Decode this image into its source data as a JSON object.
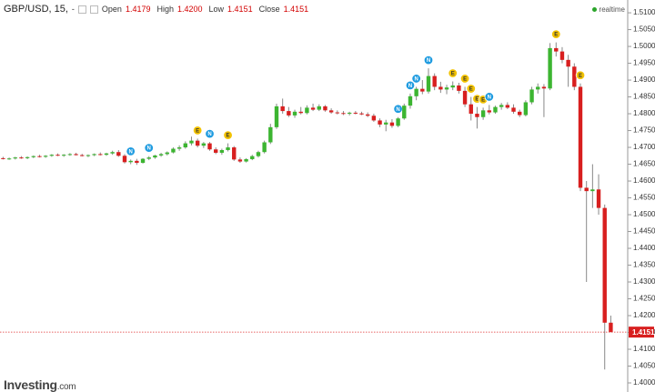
{
  "header": {
    "symbol": "GBP/USD, 15,",
    "dash": "-",
    "open": {
      "label": "Open",
      "value": "1.4179"
    },
    "high": {
      "label": "High",
      "value": "1.4200"
    },
    "low": {
      "label": "Low",
      "value": "1.4151"
    },
    "close": {
      "label": "Close",
      "value": "1.4151"
    },
    "realtime": "realtime"
  },
  "watermark": "Investing",
  "watermark_suffix": ".com",
  "chart_data": {
    "type": "candlestick",
    "up_color": "#3cb531",
    "down_color": "#d81f1f",
    "ylim": [
      1.3973,
      1.5138
    ],
    "yticks": [
      {
        "value": 1.51,
        "label": "1.5100"
      },
      {
        "value": 1.505,
        "label": "1.5050"
      },
      {
        "value": 1.5,
        "label": "1.5000"
      },
      {
        "value": 1.495,
        "label": "1.4950"
      },
      {
        "value": 1.49,
        "label": "1.4900"
      },
      {
        "value": 1.485,
        "label": "1.4850"
      },
      {
        "value": 1.48,
        "label": "1.4800"
      },
      {
        "value": 1.475,
        "label": "1.4750"
      },
      {
        "value": 1.47,
        "label": "1.4700"
      },
      {
        "value": 1.465,
        "label": "1.4650"
      },
      {
        "value": 1.46,
        "label": "1.4600"
      },
      {
        "value": 1.455,
        "label": "1.4550"
      },
      {
        "value": 1.45,
        "label": "1.4500"
      },
      {
        "value": 1.445,
        "label": "1.4450"
      },
      {
        "value": 1.44,
        "label": "1.4400"
      },
      {
        "value": 1.435,
        "label": "1.4350"
      },
      {
        "value": 1.43,
        "label": "1.4300"
      },
      {
        "value": 1.425,
        "label": "1.4250"
      },
      {
        "value": 1.42,
        "label": "1.4200"
      },
      {
        "value": 1.415,
        "label": "1.4150"
      },
      {
        "value": 1.41,
        "label": "1.4100"
      },
      {
        "value": 1.405,
        "label": "1.4050"
      },
      {
        "value": 1.4,
        "label": "1.4000"
      }
    ],
    "last_price": {
      "value": 1.4151,
      "label": "1.4151"
    },
    "candles": [
      [
        1.4668,
        1.4672,
        1.4664,
        1.4666
      ],
      [
        1.4666,
        1.467,
        1.4663,
        1.4667
      ],
      [
        1.4667,
        1.4672,
        1.4664,
        1.467
      ],
      [
        1.467,
        1.4674,
        1.4666,
        1.4668
      ],
      [
        1.4668,
        1.4673,
        1.4665,
        1.4671
      ],
      [
        1.4671,
        1.4676,
        1.4668,
        1.4674
      ],
      [
        1.4674,
        1.4678,
        1.467,
        1.4672
      ],
      [
        1.4672,
        1.4677,
        1.4669,
        1.4675
      ],
      [
        1.4675,
        1.468,
        1.4672,
        1.4678
      ],
      [
        1.4678,
        1.4682,
        1.4674,
        1.4676
      ],
      [
        1.4676,
        1.468,
        1.4672,
        1.4678
      ],
      [
        1.4678,
        1.4683,
        1.4675,
        1.468
      ],
      [
        1.468,
        1.4684,
        1.4676,
        1.4677
      ],
      [
        1.4677,
        1.4681,
        1.4673,
        1.4675
      ],
      [
        1.4675,
        1.4679,
        1.4671,
        1.4677
      ],
      [
        1.4677,
        1.4682,
        1.4674,
        1.468
      ],
      [
        1.468,
        1.4685,
        1.4676,
        1.4678
      ],
      [
        1.4678,
        1.4684,
        1.4675,
        1.4682
      ],
      [
        1.4682,
        1.469,
        1.4678,
        1.4686
      ],
      [
        1.4686,
        1.4692,
        1.4672,
        1.4675
      ],
      [
        1.4675,
        1.468,
        1.4652,
        1.4656
      ],
      [
        1.4656,
        1.4664,
        1.465,
        1.466
      ],
      [
        1.466,
        1.4666,
        1.4648,
        1.4654
      ],
      [
        1.4654,
        1.4668,
        1.4652,
        1.4666
      ],
      [
        1.4666,
        1.4674,
        1.4662,
        1.467
      ],
      [
        1.467,
        1.4678,
        1.4666,
        1.4676
      ],
      [
        1.4676,
        1.4684,
        1.4672,
        1.468
      ],
      [
        1.468,
        1.4688,
        1.4676,
        1.4685
      ],
      [
        1.4685,
        1.47,
        1.4682,
        1.4696
      ],
      [
        1.4696,
        1.4706,
        1.469,
        1.47
      ],
      [
        1.47,
        1.4718,
        1.4696,
        1.4712
      ],
      [
        1.4712,
        1.4732,
        1.4706,
        1.472
      ],
      [
        1.472,
        1.4726,
        1.47,
        1.4705
      ],
      [
        1.4705,
        1.4716,
        1.4698,
        1.4712
      ],
      [
        1.4712,
        1.4716,
        1.469,
        1.4694
      ],
      [
        1.4694,
        1.47,
        1.468,
        1.4684
      ],
      [
        1.4684,
        1.4696,
        1.4678,
        1.4692
      ],
      [
        1.4692,
        1.4712,
        1.4688,
        1.47
      ],
      [
        1.47,
        1.4704,
        1.466,
        1.4664
      ],
      [
        1.4664,
        1.467,
        1.4654,
        1.4658
      ],
      [
        1.4658,
        1.4668,
        1.4655,
        1.4665
      ],
      [
        1.4665,
        1.4678,
        1.4662,
        1.4674
      ],
      [
        1.4674,
        1.469,
        1.467,
        1.4686
      ],
      [
        1.4686,
        1.472,
        1.4682,
        1.4715
      ],
      [
        1.4715,
        1.477,
        1.471,
        1.476
      ],
      [
        1.476,
        1.483,
        1.4755,
        1.4822
      ],
      [
        1.4822,
        1.4845,
        1.48,
        1.4808
      ],
      [
        1.4808,
        1.482,
        1.479,
        1.4795
      ],
      [
        1.4795,
        1.4812,
        1.4788,
        1.4806
      ],
      [
        1.4806,
        1.482,
        1.4798,
        1.4802
      ],
      [
        1.4802,
        1.4825,
        1.4798,
        1.4818
      ],
      [
        1.4818,
        1.483,
        1.4808,
        1.4812
      ],
      [
        1.4812,
        1.4828,
        1.4808,
        1.4822
      ],
      [
        1.4822,
        1.4826,
        1.4806,
        1.481
      ],
      [
        1.481,
        1.4816,
        1.48,
        1.4804
      ],
      [
        1.4804,
        1.481,
        1.4798,
        1.4802
      ],
      [
        1.4802,
        1.4808,
        1.4796,
        1.48
      ],
      [
        1.48,
        1.4806,
        1.4795,
        1.4803
      ],
      [
        1.4803,
        1.4808,
        1.4798,
        1.4801
      ],
      [
        1.4801,
        1.4806,
        1.4796,
        1.4798
      ],
      [
        1.4798,
        1.4804,
        1.479,
        1.4794
      ],
      [
        1.4794,
        1.48,
        1.4776,
        1.478
      ],
      [
        1.478,
        1.4786,
        1.476,
        1.4768
      ],
      [
        1.4768,
        1.4782,
        1.4748,
        1.4774
      ],
      [
        1.4774,
        1.4784,
        1.4758,
        1.4764
      ],
      [
        1.4764,
        1.479,
        1.476,
        1.4786
      ],
      [
        1.4786,
        1.483,
        1.4782,
        1.4824
      ],
      [
        1.4824,
        1.486,
        1.4815,
        1.4852
      ],
      [
        1.4852,
        1.488,
        1.484,
        1.4874
      ],
      [
        1.4874,
        1.49,
        1.4858,
        1.4866
      ],
      [
        1.4866,
        1.4935,
        1.486,
        1.4912
      ],
      [
        1.4912,
        1.492,
        1.487,
        1.488
      ],
      [
        1.488,
        1.4895,
        1.4862,
        1.4872
      ],
      [
        1.4872,
        1.4886,
        1.4858,
        1.4878
      ],
      [
        1.4878,
        1.4896,
        1.487,
        1.4884
      ],
      [
        1.4884,
        1.4892,
        1.486,
        1.4868
      ],
      [
        1.4868,
        1.488,
        1.482,
        1.4828
      ],
      [
        1.4828,
        1.485,
        1.478,
        1.48
      ],
      [
        1.48,
        1.482,
        1.4756,
        1.479
      ],
      [
        1.479,
        1.4818,
        1.4782,
        1.481
      ],
      [
        1.481,
        1.4826,
        1.4798,
        1.4804
      ],
      [
        1.4804,
        1.4824,
        1.48,
        1.482
      ],
      [
        1.482,
        1.4832,
        1.4812,
        1.4826
      ],
      [
        1.4826,
        1.4834,
        1.4814,
        1.4818
      ],
      [
        1.4818,
        1.4828,
        1.48,
        1.4806
      ],
      [
        1.4806,
        1.4812,
        1.479,
        1.4796
      ],
      [
        1.4796,
        1.484,
        1.4792,
        1.4834
      ],
      [
        1.4834,
        1.488,
        1.4828,
        1.4872
      ],
      [
        1.4872,
        1.489,
        1.486,
        1.488
      ],
      [
        1.488,
        1.4888,
        1.479,
        1.4875
      ],
      [
        1.4875,
        1.501,
        1.487,
        1.4995
      ],
      [
        1.4995,
        1.5012,
        1.497,
        1.4985
      ],
      [
        1.4985,
        1.4998,
        1.495,
        1.496
      ],
      [
        1.496,
        1.4975,
        1.488,
        1.494
      ],
      [
        1.494,
        1.495,
        1.487,
        1.488
      ],
      [
        1.488,
        1.489,
        1.457,
        1.458
      ],
      [
        1.458,
        1.46,
        1.43,
        1.457
      ],
      [
        1.457,
        1.465,
        1.452,
        1.4575
      ],
      [
        1.4575,
        1.462,
        1.45,
        1.452
      ],
      [
        1.452,
        1.453,
        1.404,
        1.4179
      ],
      [
        1.4179,
        1.42,
        1.4151,
        1.4151
      ]
    ],
    "event_colors": {
      "N": "#1e9be0",
      "E": "#f2c200"
    },
    "events": [
      null,
      null,
      null,
      null,
      null,
      null,
      null,
      null,
      null,
      null,
      null,
      null,
      null,
      null,
      null,
      null,
      null,
      null,
      null,
      null,
      null,
      "N",
      null,
      null,
      "N",
      null,
      null,
      null,
      null,
      null,
      null,
      null,
      "E",
      null,
      "N",
      null,
      null,
      "E",
      null,
      null,
      null,
      null,
      null,
      null,
      null,
      null,
      null,
      null,
      null,
      null,
      null,
      null,
      null,
      null,
      null,
      null,
      null,
      null,
      null,
      null,
      null,
      null,
      null,
      null,
      null,
      "N",
      null,
      "N",
      "N",
      null,
      "N",
      null,
      null,
      null,
      "E",
      null,
      "E",
      "E",
      "E",
      "E",
      "N",
      null,
      null,
      null,
      null,
      null,
      null,
      null,
      null,
      null,
      null,
      "E",
      null,
      null,
      null,
      "E",
      null,
      null,
      null,
      null,
      null
    ]
  }
}
